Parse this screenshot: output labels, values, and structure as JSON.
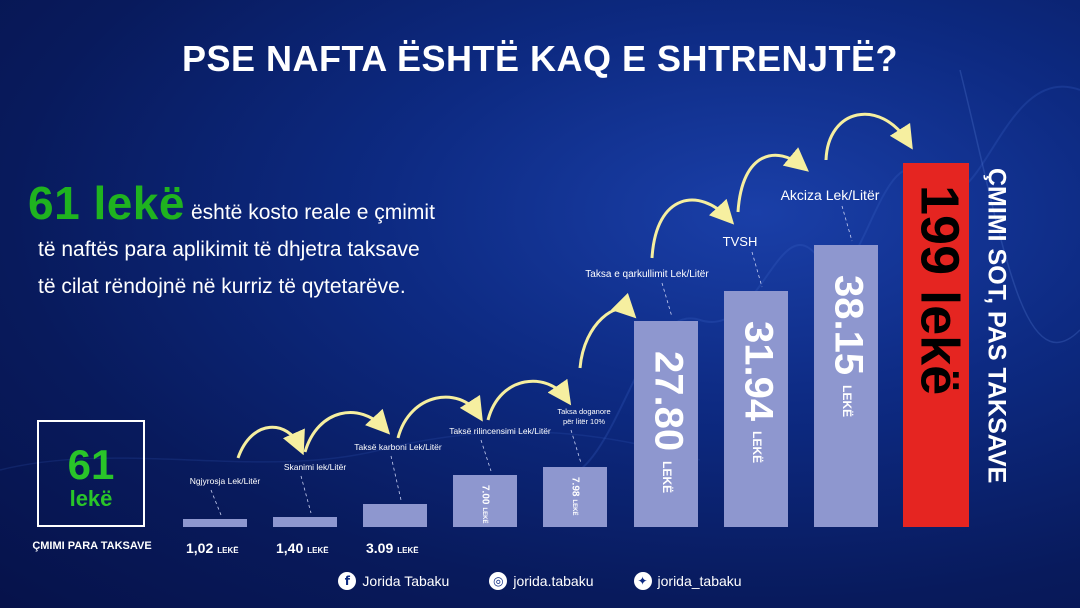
{
  "title": "PSE NAFTA ËSHTË KAQ E SHTRENJTË?",
  "headline": {
    "big": "61 lekë",
    "rest": "është kosto reale e çmimit",
    "line2": "të naftës para aplikimit të dhjetra taksave",
    "line3": "të cilat rëndojnë në kurriz të qytetarëve."
  },
  "base_box": {
    "number": "61",
    "unit": "lekë",
    "caption": "ÇMIMI PARA TAKSAVE"
  },
  "colors": {
    "bar": "#8e97cf",
    "final_bar": "#e52521",
    "green": "#1fb31f",
    "arrow": "#f6efa0",
    "background": "#0d2a82"
  },
  "chart_data": {
    "type": "bar",
    "unit": "LEKË",
    "categories": [
      "Ngjyrosja Lek/Litër",
      "Skanimi lek/Litër",
      "Taksë karboni Lek/Litër",
      "Taksë rilincensimi Lek/Litër",
      "Taksa doganore për litër 10%",
      "Taksa e qarkullimit Lek/Litër",
      "TVSH",
      "Akciza Lek/Litër",
      "ÇMIMI SOT, PAS TAKSAVE"
    ],
    "values": [
      1.02,
      1.4,
      3.09,
      7.0,
      7.98,
      27.8,
      31.94,
      38.15,
      199
    ],
    "value_labels": [
      "1,02",
      "1,40",
      "3.09",
      "7.00",
      "7.98",
      "27.80",
      "31.94",
      "38.15",
      "199 lekë"
    ],
    "unit_labels": [
      "LEKË",
      "LEKË",
      "LEKË",
      "LEKË",
      "LEKË",
      "LEKË",
      "LEKË",
      "LEKË",
      ""
    ]
  },
  "footer": {
    "facebook": "Jorida Tabaku",
    "instagram": "jorida.tabaku",
    "twitter": "jorida_tabaku"
  }
}
